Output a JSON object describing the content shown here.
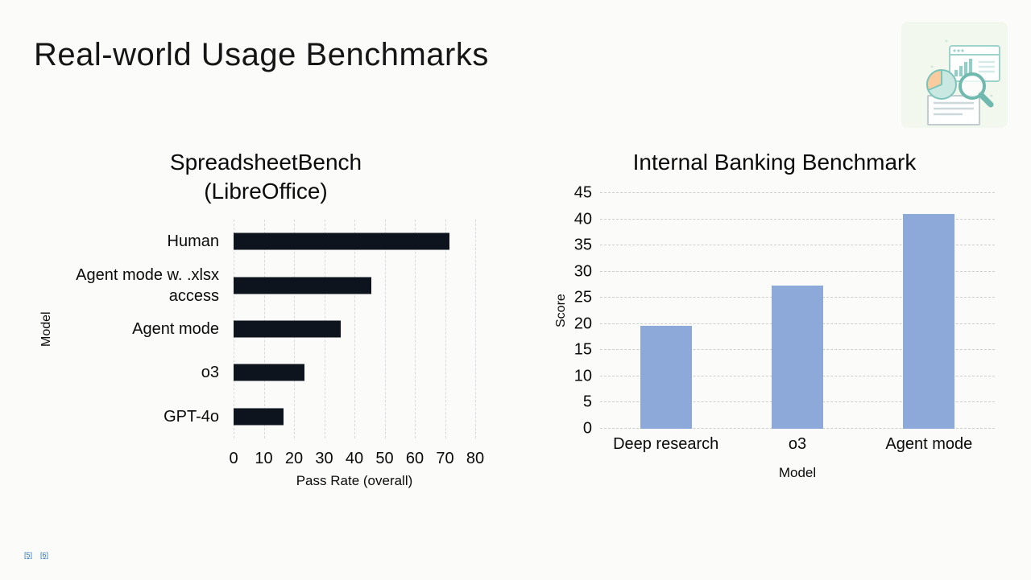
{
  "slide": {
    "title": "Real-world Usage Benchmarks",
    "background_color": "#fbfbf9",
    "footnote_color": "#2e75b6",
    "footnotes": [
      {
        "label": "[5]"
      },
      {
        "label": "[6]"
      }
    ],
    "corner_icon": "analytics-illustration (browser window with bar chart, pie chart, document, magnifying glass)"
  },
  "chart_data": [
    {
      "type": "bar",
      "orientation": "horizontal",
      "title": "SpreadsheetBench\n(LibreOffice)",
      "categories": [
        "Human",
        "Agent mode w. .xlsx access",
        "Agent mode",
        "o3",
        "GPT-4o"
      ],
      "values": [
        71.5,
        45.5,
        35.5,
        23.5,
        16.5
      ],
      "xlabel": "Pass Rate (overall)",
      "ylabel": "Model",
      "xlim": [
        0,
        80
      ],
      "xticks": [
        0,
        10,
        20,
        30,
        40,
        50,
        60,
        70,
        80
      ],
      "grid": "vertical-dashed",
      "bar_color": "#0e141d"
    },
    {
      "type": "bar",
      "orientation": "vertical",
      "title": "Internal Banking Benchmark",
      "categories": [
        "Deep research",
        "o3",
        "Agent mode"
      ],
      "values": [
        19.7,
        27.3,
        41
      ],
      "xlabel": "Model",
      "ylabel": "Score",
      "ylim": [
        0,
        45
      ],
      "yticks": [
        0,
        5,
        10,
        15,
        20,
        25,
        30,
        35,
        40,
        45
      ],
      "grid": "horizontal-dashed",
      "bar_color": "#8ca9d9"
    }
  ]
}
